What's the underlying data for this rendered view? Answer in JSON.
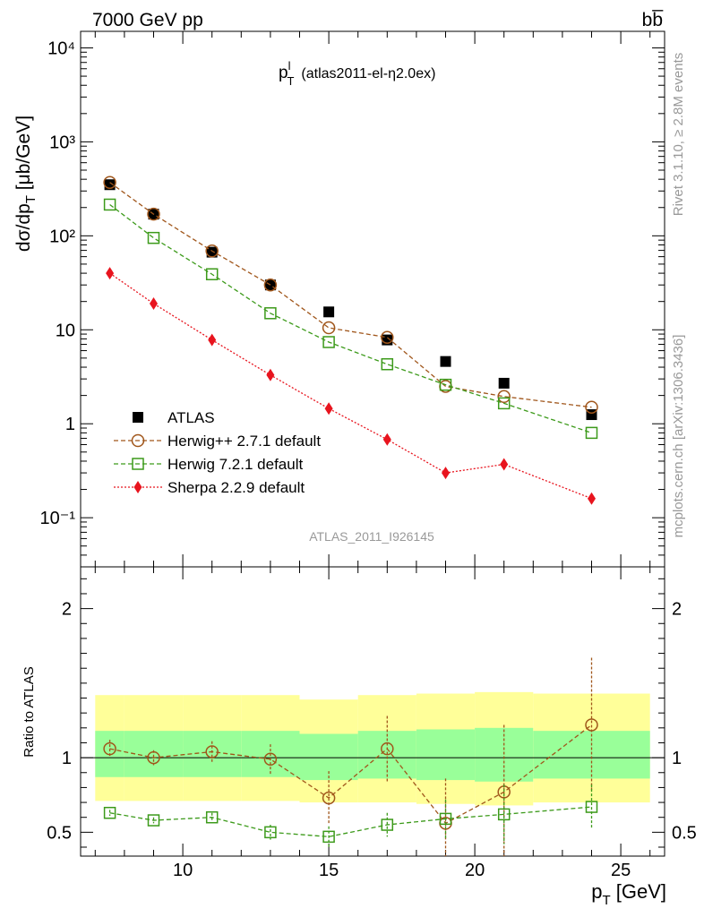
{
  "header": {
    "left": "7000 GeV pp",
    "right": "bb̅",
    "side_top": "Rivet 3.1.10, ≥ 2.8M events",
    "side_bottom": "mcplots.cern.ch [arXiv:1306.3436]"
  },
  "chart_data": [
    {
      "type": "scatter",
      "panel": "main",
      "title_main": "p",
      "title_sup": "l",
      "title_sub": "T",
      "title_rest": "(atlas2011-el-η2.0ex)",
      "analysis_label": "ATLAS_2011_I926145",
      "ylabel": "dσ/dp_T [μb/GeV]",
      "yscale": "log",
      "ylim": [
        0.03,
        15000
      ],
      "xlim": [
        6.5,
        26.5
      ],
      "ytick_labels": [
        "10⁻¹",
        "1",
        "10",
        "10²",
        "10³",
        "10⁴"
      ],
      "legend_position": "center-left",
      "series": [
        {
          "name": "ATLAS",
          "marker": "square-filled",
          "color": "#000000",
          "line": "none",
          "x": [
            7.5,
            9,
            11,
            13,
            15,
            17,
            19,
            21,
            24
          ],
          "y": [
            350,
            170,
            67,
            30,
            15.5,
            7.8,
            4.6,
            2.7,
            1.25
          ]
        },
        {
          "name": "Herwig++ 2.7.1 default",
          "marker": "circle-open",
          "color": "#a0561b",
          "line": "dashed",
          "x": [
            7.5,
            9,
            11,
            13,
            15,
            17,
            19,
            21,
            24
          ],
          "y": [
            370,
            170,
            69,
            30,
            10.5,
            8.3,
            2.5,
            1.95,
            1.5
          ]
        },
        {
          "name": "Herwig 7.2.1 default",
          "marker": "square-open",
          "color": "#3c9a1a",
          "line": "dashed",
          "x": [
            7.5,
            9,
            11,
            13,
            15,
            17,
            19,
            21,
            24
          ],
          "y": [
            215,
            95,
            39,
            15,
            7.4,
            4.3,
            2.6,
            1.65,
            0.8
          ]
        },
        {
          "name": "Sherpa 2.2.9 default",
          "marker": "diamond-filled",
          "color": "#e8141e",
          "line": "dotted",
          "x": [
            7.5,
            9,
            11,
            13,
            15,
            17,
            19,
            21,
            24
          ],
          "y": [
            40,
            19,
            7.8,
            3.3,
            1.45,
            0.68,
            0.3,
            0.37,
            0.16
          ]
        }
      ]
    },
    {
      "type": "scatter",
      "panel": "ratio",
      "ylabel": "Ratio to ATLAS",
      "ylim": [
        0.34,
        2.28
      ],
      "xlim": [
        6.5,
        26.5
      ],
      "ytick_labels": [
        "0.5",
        "1",
        "2"
      ],
      "xtick_labels": [
        "10",
        "15",
        "20",
        "25"
      ],
      "xlabel": "p_T [GeV]",
      "reference_line": 1,
      "bands": {
        "x_edges": [
          7,
          8,
          10,
          12,
          14,
          16,
          18,
          20,
          22,
          26
        ],
        "inner_lo": [
          0.87,
          0.87,
          0.87,
          0.87,
          0.85,
          0.86,
          0.85,
          0.84,
          0.86
        ],
        "inner_hi": [
          1.18,
          1.18,
          1.18,
          1.18,
          1.16,
          1.18,
          1.19,
          1.2,
          1.18
        ],
        "outer_lo": [
          0.71,
          0.71,
          0.71,
          0.71,
          0.7,
          0.7,
          0.69,
          0.68,
          0.7
        ],
        "outer_hi": [
          1.42,
          1.42,
          1.42,
          1.42,
          1.39,
          1.42,
          1.43,
          1.44,
          1.43
        ]
      },
      "series": [
        {
          "name": "Herwig++ 2.7.1 default",
          "marker": "circle-open",
          "color": "#a0561b",
          "line": "dashed",
          "x": [
            7.5,
            9,
            11,
            13,
            15,
            17,
            19,
            21,
            24
          ],
          "y": [
            1.06,
            1.0,
            1.04,
            0.99,
            0.73,
            1.06,
            0.56,
            0.77,
            1.22
          ],
          "err": [
            0.06,
            0.05,
            0.07,
            0.1,
            0.18,
            0.22,
            0.3,
            0.45,
            0.45
          ]
        },
        {
          "name": "Herwig 7.2.1 default",
          "marker": "square-open",
          "color": "#3c9a1a",
          "line": "dashed",
          "x": [
            7.5,
            9,
            11,
            13,
            15,
            17,
            19,
            21,
            24
          ],
          "y": [
            0.63,
            0.58,
            0.6,
            0.5,
            0.47,
            0.55,
            0.59,
            0.62,
            0.67
          ],
          "err": [
            0.02,
            0.02,
            0.03,
            0.05,
            0.07,
            0.08,
            0.13,
            0.2,
            0.15
          ]
        }
      ]
    }
  ]
}
